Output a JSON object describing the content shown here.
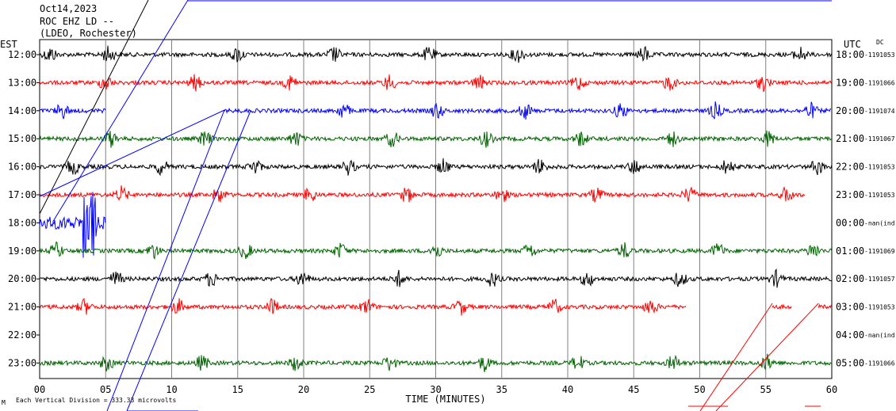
{
  "header": {
    "date": "Oct14,2023",
    "station": "ROC EHZ LD --",
    "network": "(LDEO, Rochester)"
  },
  "chart_data": {
    "type": "line",
    "left_axis_label": "EST",
    "right_axis_label": "UTC",
    "dc_label": "DC",
    "xlabel": "TIME (MINUTES)",
    "xlim": [
      0,
      60
    ],
    "x_ticks": [
      "00",
      "05",
      "10",
      "15",
      "20",
      "25",
      "30",
      "35",
      "40",
      "45",
      "50",
      "55",
      "60"
    ],
    "footnote": "Each Vertical Division = 333.33 microvolts",
    "line_colors": [
      "#000000",
      "#ff0000",
      "#0000ff",
      "#006400"
    ],
    "rows": [
      {
        "est": "12:00",
        "utc": "18:00",
        "dc": "-1191053",
        "color": "#000000",
        "trace": [
          [
            0,
            60
          ]
        ],
        "bursts": [
          0.8,
          5.2,
          15.0,
          22.3,
          29.5,
          36.2,
          45.8,
          57.6
        ]
      },
      {
        "est": "13:00",
        "utc": "19:00",
        "dc": "-1191066",
        "color": "#ff0000",
        "trace": [
          [
            0,
            60
          ]
        ],
        "bursts": [
          5.0,
          11.8,
          19.0,
          26.5,
          33.3,
          40.8,
          47.7,
          54.8
        ]
      },
      {
        "est": "14:00",
        "utc": "20:00",
        "dc": "-1191074",
        "color": "#0000ff",
        "trace": [
          [
            0,
            5
          ],
          [
            14,
            60
          ]
        ],
        "bursts": [
          1.7,
          23.0,
          30.1,
          36.8,
          44.0,
          51.2,
          58.4
        ]
      },
      {
        "est": "15:00",
        "utc": "21:00",
        "dc": "-1191067",
        "color": "#006400",
        "trace": [
          [
            0,
            60
          ]
        ],
        "bursts": [
          5.4,
          12.5,
          19.4,
          26.7,
          33.8,
          41.0,
          47.9,
          55.2
        ]
      },
      {
        "est": "16:00",
        "utc": "22:00",
        "dc": "-1191053",
        "color": "#000000",
        "trace": [
          [
            0,
            60
          ]
        ],
        "bursts": [
          2.5,
          9.2,
          16.3,
          23.4,
          30.6,
          37.9,
          45.1,
          52.1,
          58.9
        ]
      },
      {
        "est": "17:00",
        "utc": "23:00",
        "dc": "-1191053",
        "color": "#ff0000",
        "trace": [
          [
            0,
            58
          ]
        ],
        "bursts": [
          6.2,
          13.6,
          20.5,
          27.8,
          35.0,
          42.2,
          49.2,
          56.6
        ]
      },
      {
        "est": "18:00",
        "utc": "00:00",
        "dc": "-nan(ind)",
        "color": "#0000ff",
        "trace": [
          [
            0,
            5
          ]
        ],
        "bursts": [
          2.0,
          3.8
        ]
      },
      {
        "est": "19:00",
        "utc": "01:00",
        "dc": "-1191069",
        "color": "#006400",
        "trace": [
          [
            0,
            60
          ]
        ],
        "bursts": [
          1.3,
          8.6,
          15.6,
          22.8,
          30.0,
          37.1,
          44.3,
          51.4,
          58.6
        ]
      },
      {
        "est": "20:00",
        "utc": "02:00",
        "dc": "-1191057",
        "color": "#000000",
        "trace": [
          [
            0,
            60
          ]
        ],
        "bursts": [
          5.8,
          13.0,
          19.9,
          27.2,
          34.3,
          41.5,
          48.5,
          55.8
        ]
      },
      {
        "est": "21:00",
        "utc": "03:00",
        "dc": "-1191053",
        "color": "#ff0000",
        "trace": [
          [
            0,
            49
          ],
          [
            55.5,
            57
          ],
          [
            59,
            60
          ]
        ],
        "bursts": [
          3.4,
          10.5,
          17.6,
          24.8,
          31.9,
          39.0,
          46.3
        ]
      },
      {
        "est": "22:00",
        "utc": "04:00",
        "dc": "-nan(ind)",
        "color": "#0000ff",
        "trace": [],
        "bursts": []
      },
      {
        "est": "23:00",
        "utc": "05:00",
        "dc": "-1191066",
        "color": "#006400",
        "trace": [
          [
            0,
            60
          ]
        ],
        "bursts": [
          5.1,
          12.3,
          19.4,
          26.5,
          33.7,
          40.8,
          48.0,
          55.1
        ]
      }
    ]
  }
}
